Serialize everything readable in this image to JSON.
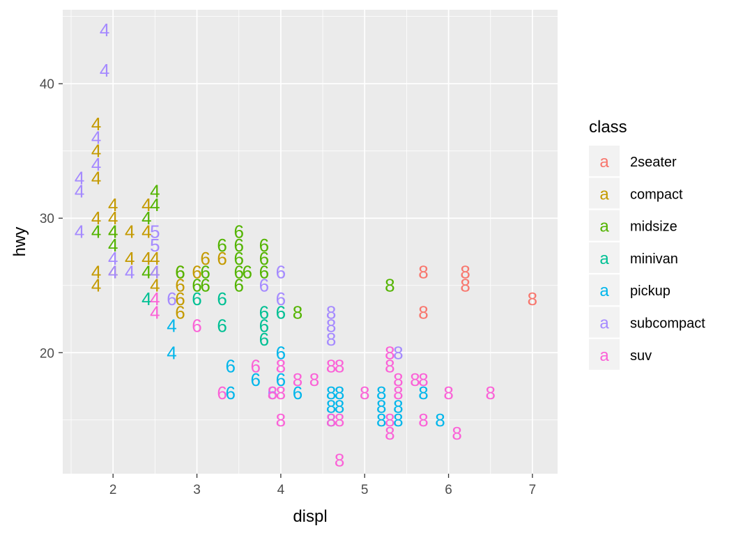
{
  "chart_data": {
    "type": "scatter",
    "title": "",
    "xlabel": "displ",
    "ylabel": "hwy",
    "xlim": [
      1.4,
      7.3
    ],
    "ylim": [
      11.0,
      45.5
    ],
    "x_ticks": [
      2,
      3,
      4,
      5,
      6,
      7
    ],
    "x_tick_labels": [
      "2",
      "3",
      "4",
      "5",
      "6",
      "7"
    ],
    "y_ticks": [
      20,
      30,
      40
    ],
    "y_tick_labels": [
      "20",
      "30",
      "40"
    ],
    "y_minor_ticks": [
      15,
      25,
      35,
      45
    ],
    "x_minor_ticks": [
      1.5,
      2.5,
      3.5,
      4.5,
      5.5,
      6.5
    ],
    "grid": true,
    "background": "#ebebeb",
    "point_label_field": "cyl",
    "legend": {
      "title": "class",
      "placement": "right",
      "key_glyph": "a",
      "entries": [
        {
          "name": "2seater",
          "color": "#F8766D"
        },
        {
          "name": "compact",
          "color": "#C49A00"
        },
        {
          "name": "midsize",
          "color": "#53B400"
        },
        {
          "name": "minivan",
          "color": "#00C094"
        },
        {
          "name": "pickup",
          "color": "#00B6EB"
        },
        {
          "name": "subcompact",
          "color": "#A58AFF"
        },
        {
          "name": "suv",
          "color": "#FB61D7"
        }
      ]
    },
    "series": [
      {
        "name": "2seater",
        "points": [
          {
            "x": 5.7,
            "y": 26,
            "label": "8"
          },
          {
            "x": 5.7,
            "y": 23,
            "label": "8"
          },
          {
            "x": 6.2,
            "y": 26,
            "label": "8"
          },
          {
            "x": 6.2,
            "y": 25,
            "label": "8"
          },
          {
            "x": 7.0,
            "y": 24,
            "label": "8"
          }
        ]
      },
      {
        "name": "compact",
        "points": [
          {
            "x": 1.8,
            "y": 37,
            "label": "4"
          },
          {
            "x": 1.8,
            "y": 35,
            "label": "4"
          },
          {
            "x": 1.8,
            "y": 33,
            "label": "4"
          },
          {
            "x": 1.8,
            "y": 30,
            "label": "4"
          },
          {
            "x": 1.8,
            "y": 26,
            "label": "4"
          },
          {
            "x": 1.8,
            "y": 25,
            "label": "4"
          },
          {
            "x": 2.0,
            "y": 31,
            "label": "4"
          },
          {
            "x": 2.0,
            "y": 30,
            "label": "4"
          },
          {
            "x": 2.0,
            "y": 29,
            "label": "4"
          },
          {
            "x": 2.0,
            "y": 26,
            "label": "4"
          },
          {
            "x": 2.2,
            "y": 29,
            "label": "4"
          },
          {
            "x": 2.2,
            "y": 27,
            "label": "4"
          },
          {
            "x": 2.4,
            "y": 31,
            "label": "4"
          },
          {
            "x": 2.4,
            "y": 29,
            "label": "4"
          },
          {
            "x": 2.4,
            "y": 27,
            "label": "4"
          },
          {
            "x": 2.5,
            "y": 27,
            "label": "4"
          },
          {
            "x": 2.5,
            "y": 26,
            "label": "4"
          },
          {
            "x": 2.5,
            "y": 25,
            "label": "4"
          },
          {
            "x": 2.8,
            "y": 26,
            "label": "6"
          },
          {
            "x": 2.8,
            "y": 25,
            "label": "6"
          },
          {
            "x": 2.8,
            "y": 24,
            "label": "6"
          },
          {
            "x": 2.8,
            "y": 23,
            "label": "6"
          },
          {
            "x": 3.0,
            "y": 26,
            "label": "6"
          },
          {
            "x": 3.1,
            "y": 27,
            "label": "6"
          },
          {
            "x": 3.3,
            "y": 27,
            "label": "6"
          }
        ]
      },
      {
        "name": "midsize",
        "points": [
          {
            "x": 1.8,
            "y": 29,
            "label": "4"
          },
          {
            "x": 2.0,
            "y": 29,
            "label": "4"
          },
          {
            "x": 2.0,
            "y": 28,
            "label": "4"
          },
          {
            "x": 2.4,
            "y": 30,
            "label": "4"
          },
          {
            "x": 2.4,
            "y": 26,
            "label": "4"
          },
          {
            "x": 2.5,
            "y": 32,
            "label": "4"
          },
          {
            "x": 2.5,
            "y": 31,
            "label": "4"
          },
          {
            "x": 2.8,
            "y": 26,
            "label": "6"
          },
          {
            "x": 3.0,
            "y": 25,
            "label": "6"
          },
          {
            "x": 3.1,
            "y": 26,
            "label": "6"
          },
          {
            "x": 3.1,
            "y": 25,
            "label": "6"
          },
          {
            "x": 3.3,
            "y": 28,
            "label": "6"
          },
          {
            "x": 3.5,
            "y": 29,
            "label": "6"
          },
          {
            "x": 3.5,
            "y": 28,
            "label": "6"
          },
          {
            "x": 3.5,
            "y": 27,
            "label": "6"
          },
          {
            "x": 3.5,
            "y": 26,
            "label": "6"
          },
          {
            "x": 3.5,
            "y": 25,
            "label": "6"
          },
          {
            "x": 3.6,
            "y": 26,
            "label": "6"
          },
          {
            "x": 3.8,
            "y": 28,
            "label": "6"
          },
          {
            "x": 3.8,
            "y": 27,
            "label": "6"
          },
          {
            "x": 3.8,
            "y": 26,
            "label": "6"
          },
          {
            "x": 4.2,
            "y": 23,
            "label": "8"
          },
          {
            "x": 5.3,
            "y": 25,
            "label": "8"
          }
        ]
      },
      {
        "name": "minivan",
        "points": [
          {
            "x": 2.4,
            "y": 24,
            "label": "4"
          },
          {
            "x": 3.0,
            "y": 24,
            "label": "6"
          },
          {
            "x": 3.3,
            "y": 24,
            "label": "6"
          },
          {
            "x": 3.3,
            "y": 22,
            "label": "6"
          },
          {
            "x": 3.8,
            "y": 23,
            "label": "6"
          },
          {
            "x": 3.8,
            "y": 22,
            "label": "6"
          },
          {
            "x": 3.8,
            "y": 21,
            "label": "6"
          },
          {
            "x": 4.0,
            "y": 23,
            "label": "6"
          }
        ]
      },
      {
        "name": "pickup",
        "points": [
          {
            "x": 2.7,
            "y": 22,
            "label": "4"
          },
          {
            "x": 2.7,
            "y": 20,
            "label": "4"
          },
          {
            "x": 3.4,
            "y": 19,
            "label": "6"
          },
          {
            "x": 3.4,
            "y": 17,
            "label": "6"
          },
          {
            "x": 3.7,
            "y": 18,
            "label": "6"
          },
          {
            "x": 4.0,
            "y": 20,
            "label": "6"
          },
          {
            "x": 4.0,
            "y": 18,
            "label": "6"
          },
          {
            "x": 4.2,
            "y": 17,
            "label": "6"
          },
          {
            "x": 4.6,
            "y": 17,
            "label": "8"
          },
          {
            "x": 4.6,
            "y": 16,
            "label": "8"
          },
          {
            "x": 4.6,
            "y": 15,
            "label": "8"
          },
          {
            "x": 4.7,
            "y": 17,
            "label": "8"
          },
          {
            "x": 4.7,
            "y": 16,
            "label": "8"
          },
          {
            "x": 5.2,
            "y": 17,
            "label": "8"
          },
          {
            "x": 5.2,
            "y": 16,
            "label": "8"
          },
          {
            "x": 5.2,
            "y": 15,
            "label": "8"
          },
          {
            "x": 5.4,
            "y": 16,
            "label": "8"
          },
          {
            "x": 5.4,
            "y": 15,
            "label": "8"
          },
          {
            "x": 5.7,
            "y": 17,
            "label": "8"
          },
          {
            "x": 5.9,
            "y": 15,
            "label": "8"
          }
        ]
      },
      {
        "name": "subcompact",
        "points": [
          {
            "x": 1.6,
            "y": 33,
            "label": "4"
          },
          {
            "x": 1.6,
            "y": 32,
            "label": "4"
          },
          {
            "x": 1.6,
            "y": 29,
            "label": "4"
          },
          {
            "x": 1.8,
            "y": 36,
            "label": "4"
          },
          {
            "x": 1.8,
            "y": 34,
            "label": "4"
          },
          {
            "x": 1.9,
            "y": 44,
            "label": "4"
          },
          {
            "x": 1.9,
            "y": 41,
            "label": "4"
          },
          {
            "x": 2.0,
            "y": 27,
            "label": "4"
          },
          {
            "x": 2.0,
            "y": 26,
            "label": "4"
          },
          {
            "x": 2.2,
            "y": 26,
            "label": "4"
          },
          {
            "x": 2.5,
            "y": 29,
            "label": "5"
          },
          {
            "x": 2.5,
            "y": 28,
            "label": "5"
          },
          {
            "x": 2.5,
            "y": 26,
            "label": "4"
          },
          {
            "x": 2.7,
            "y": 24,
            "label": "6"
          },
          {
            "x": 3.8,
            "y": 25,
            "label": "6"
          },
          {
            "x": 4.0,
            "y": 26,
            "label": "6"
          },
          {
            "x": 4.0,
            "y": 24,
            "label": "6"
          },
          {
            "x": 3.9,
            "y": 17,
            "label": "6"
          },
          {
            "x": 4.6,
            "y": 23,
            "label": "8"
          },
          {
            "x": 4.6,
            "y": 22,
            "label": "8"
          },
          {
            "x": 4.6,
            "y": 21,
            "label": "8"
          },
          {
            "x": 5.4,
            "y": 20,
            "label": "8"
          }
        ]
      },
      {
        "name": "suv",
        "points": [
          {
            "x": 2.5,
            "y": 24,
            "label": "4"
          },
          {
            "x": 2.5,
            "y": 23,
            "label": "4"
          },
          {
            "x": 3.0,
            "y": 22,
            "label": "6"
          },
          {
            "x": 3.3,
            "y": 17,
            "label": "6"
          },
          {
            "x": 3.7,
            "y": 19,
            "label": "6"
          },
          {
            "x": 3.9,
            "y": 17,
            "label": "8"
          },
          {
            "x": 4.0,
            "y": 19,
            "label": "8"
          },
          {
            "x": 4.0,
            "y": 17,
            "label": "8"
          },
          {
            "x": 4.0,
            "y": 15,
            "label": "8"
          },
          {
            "x": 4.2,
            "y": 18,
            "label": "8"
          },
          {
            "x": 4.4,
            "y": 18,
            "label": "8"
          },
          {
            "x": 4.6,
            "y": 19,
            "label": "8"
          },
          {
            "x": 4.6,
            "y": 15,
            "label": "8"
          },
          {
            "x": 4.7,
            "y": 19,
            "label": "8"
          },
          {
            "x": 4.7,
            "y": 15,
            "label": "8"
          },
          {
            "x": 4.7,
            "y": 12,
            "label": "8"
          },
          {
            "x": 5.0,
            "y": 17,
            "label": "8"
          },
          {
            "x": 5.3,
            "y": 20,
            "label": "8"
          },
          {
            "x": 5.3,
            "y": 19,
            "label": "8"
          },
          {
            "x": 5.3,
            "y": 15,
            "label": "8"
          },
          {
            "x": 5.3,
            "y": 14,
            "label": "8"
          },
          {
            "x": 5.4,
            "y": 18,
            "label": "8"
          },
          {
            "x": 5.4,
            "y": 17,
            "label": "8"
          },
          {
            "x": 5.6,
            "y": 18,
            "label": "8"
          },
          {
            "x": 5.7,
            "y": 18,
            "label": "8"
          },
          {
            "x": 5.7,
            "y": 15,
            "label": "8"
          },
          {
            "x": 6.0,
            "y": 17,
            "label": "8"
          },
          {
            "x": 6.1,
            "y": 14,
            "label": "8"
          },
          {
            "x": 6.5,
            "y": 17,
            "label": "8"
          }
        ]
      }
    ]
  }
}
